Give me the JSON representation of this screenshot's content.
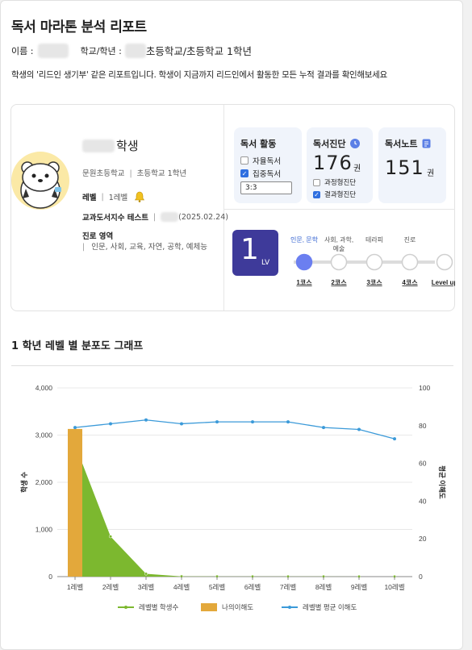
{
  "report": {
    "title": "독서 마라톤 분석 리포트",
    "name_label": "이름 :",
    "grade_label": "학교/학년 :",
    "school_grade": "초등학교/초등학교 1학년",
    "description": "학생의 '리드인 생기부' 같은 리포트입니다. 학생이 지금까지 리드인에서 활동한 모든 누적 결과를 확인해보세요"
  },
  "student": {
    "name_suffix": "학생",
    "school": "문원초등학교",
    "grade": "초등학교 1학년",
    "level_label": "레벨",
    "level_value": "1레벨",
    "test_label": "교과도서지수 테스트",
    "test_date": "(2025.02.24)",
    "area_title": "진로 영역",
    "areas": "인문, 사회, 교육, 자연, 공학, 예체능"
  },
  "reading_activity": {
    "title": "독서 활동",
    "option1": "자율독서",
    "option2": "집중독서",
    "option1_checked": false,
    "option2_checked": true,
    "ratio": "3:3"
  },
  "diagnosis": {
    "title": "독서진단",
    "count": "176",
    "unit": "권",
    "option1": "과정형진단",
    "option2": "결과형진단",
    "option1_checked": false,
    "option2_checked": true
  },
  "notes": {
    "title": "독서노트",
    "count": "151",
    "unit": "권"
  },
  "course": {
    "level_number": "1",
    "level_suffix": "LV",
    "steps": [
      {
        "top": "인문, 문학",
        "bottom": "1코스",
        "active": true
      },
      {
        "top": "사회, 과학, 예술",
        "bottom": "2코스",
        "active": false
      },
      {
        "top": "테라피",
        "bottom": "3코스",
        "active": false
      },
      {
        "top": "진로",
        "bottom": "4코스",
        "active": false
      },
      {
        "top": "",
        "bottom": "Level up",
        "active": false
      }
    ]
  },
  "chart_section_title": "1 학년 레벨 별 분포도 그래프",
  "colors": {
    "accent": "#3e3a9a",
    "area_green": "#7cb82f",
    "bar_orange": "#e3a83b",
    "line_blue": "#3b9ad9",
    "step_active": "#6b7ff0"
  },
  "chart_data": {
    "type": "bar",
    "categories": [
      "1레벨",
      "2레벨",
      "3레벨",
      "4레벨",
      "5레벨",
      "6레벨",
      "7레벨",
      "8레벨",
      "9레벨",
      "10레벨"
    ],
    "series": [
      {
        "name": "레벨별 학생수",
        "type": "area",
        "axis": "left",
        "values": [
          2800,
          850,
          60,
          5,
          3,
          2,
          2,
          2,
          1,
          1
        ]
      },
      {
        "name": "나의이해도",
        "type": "bar",
        "axis": "left",
        "values": [
          3130,
          null,
          null,
          null,
          null,
          null,
          null,
          null,
          null,
          null
        ]
      },
      {
        "name": "레벨별 평균 이해도",
        "type": "line",
        "axis": "right",
        "values": [
          79,
          81,
          83,
          81,
          82,
          82,
          82,
          79,
          78,
          73
        ]
      }
    ],
    "ylabel": "학생 수",
    "y2label": "평균 이해도",
    "ylim": [
      0,
      4000
    ],
    "y2lim": [
      0,
      100
    ],
    "yticks": [
      "0",
      "1,000",
      "2,000",
      "3,000",
      "4,000"
    ],
    "y2ticks": [
      "0",
      "20",
      "40",
      "60",
      "80",
      "100"
    ],
    "grid": true,
    "legend_position": "bottom"
  }
}
